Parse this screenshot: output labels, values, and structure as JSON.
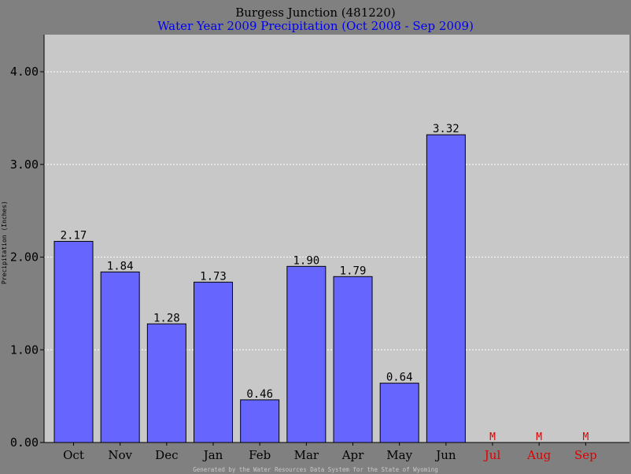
{
  "colors": {
    "background": "#808080",
    "plot_area": "#c8c8c8",
    "bar": "#6666ff",
    "subtitle": "#0000ee",
    "missing": "#dd0000",
    "footer": "#c8c8c8"
  },
  "footer_text": "Generated by the Water Resources Data System for the State of Wyoming",
  "chart_data": {
    "type": "bar",
    "title": "Burgess Junction (481220)",
    "subtitle": "Water Year 2009 Precipitation (Oct 2008 - Sep 2009)",
    "ylabel": "Precipitation (Inches)",
    "xlabel": "",
    "ylim": [
      0,
      4.4
    ],
    "yticks": [
      "0.00",
      "1.00",
      "2.00",
      "3.00",
      "4.00"
    ],
    "ytick_values": [
      0,
      1,
      2,
      3,
      4
    ],
    "grid": true,
    "categories": [
      "Oct",
      "Nov",
      "Dec",
      "Jan",
      "Feb",
      "Mar",
      "Apr",
      "May",
      "Jun",
      "Jul",
      "Aug",
      "Sep"
    ],
    "values": [
      2.17,
      1.84,
      1.28,
      1.73,
      0.46,
      1.9,
      1.79,
      0.64,
      3.32,
      null,
      null,
      null
    ],
    "value_labels": [
      "2.17",
      "1.84",
      "1.28",
      "1.73",
      "0.46",
      "1.90",
      "1.79",
      "0.64",
      "3.32",
      "M",
      "M",
      "M"
    ],
    "missing_flag": "M"
  }
}
